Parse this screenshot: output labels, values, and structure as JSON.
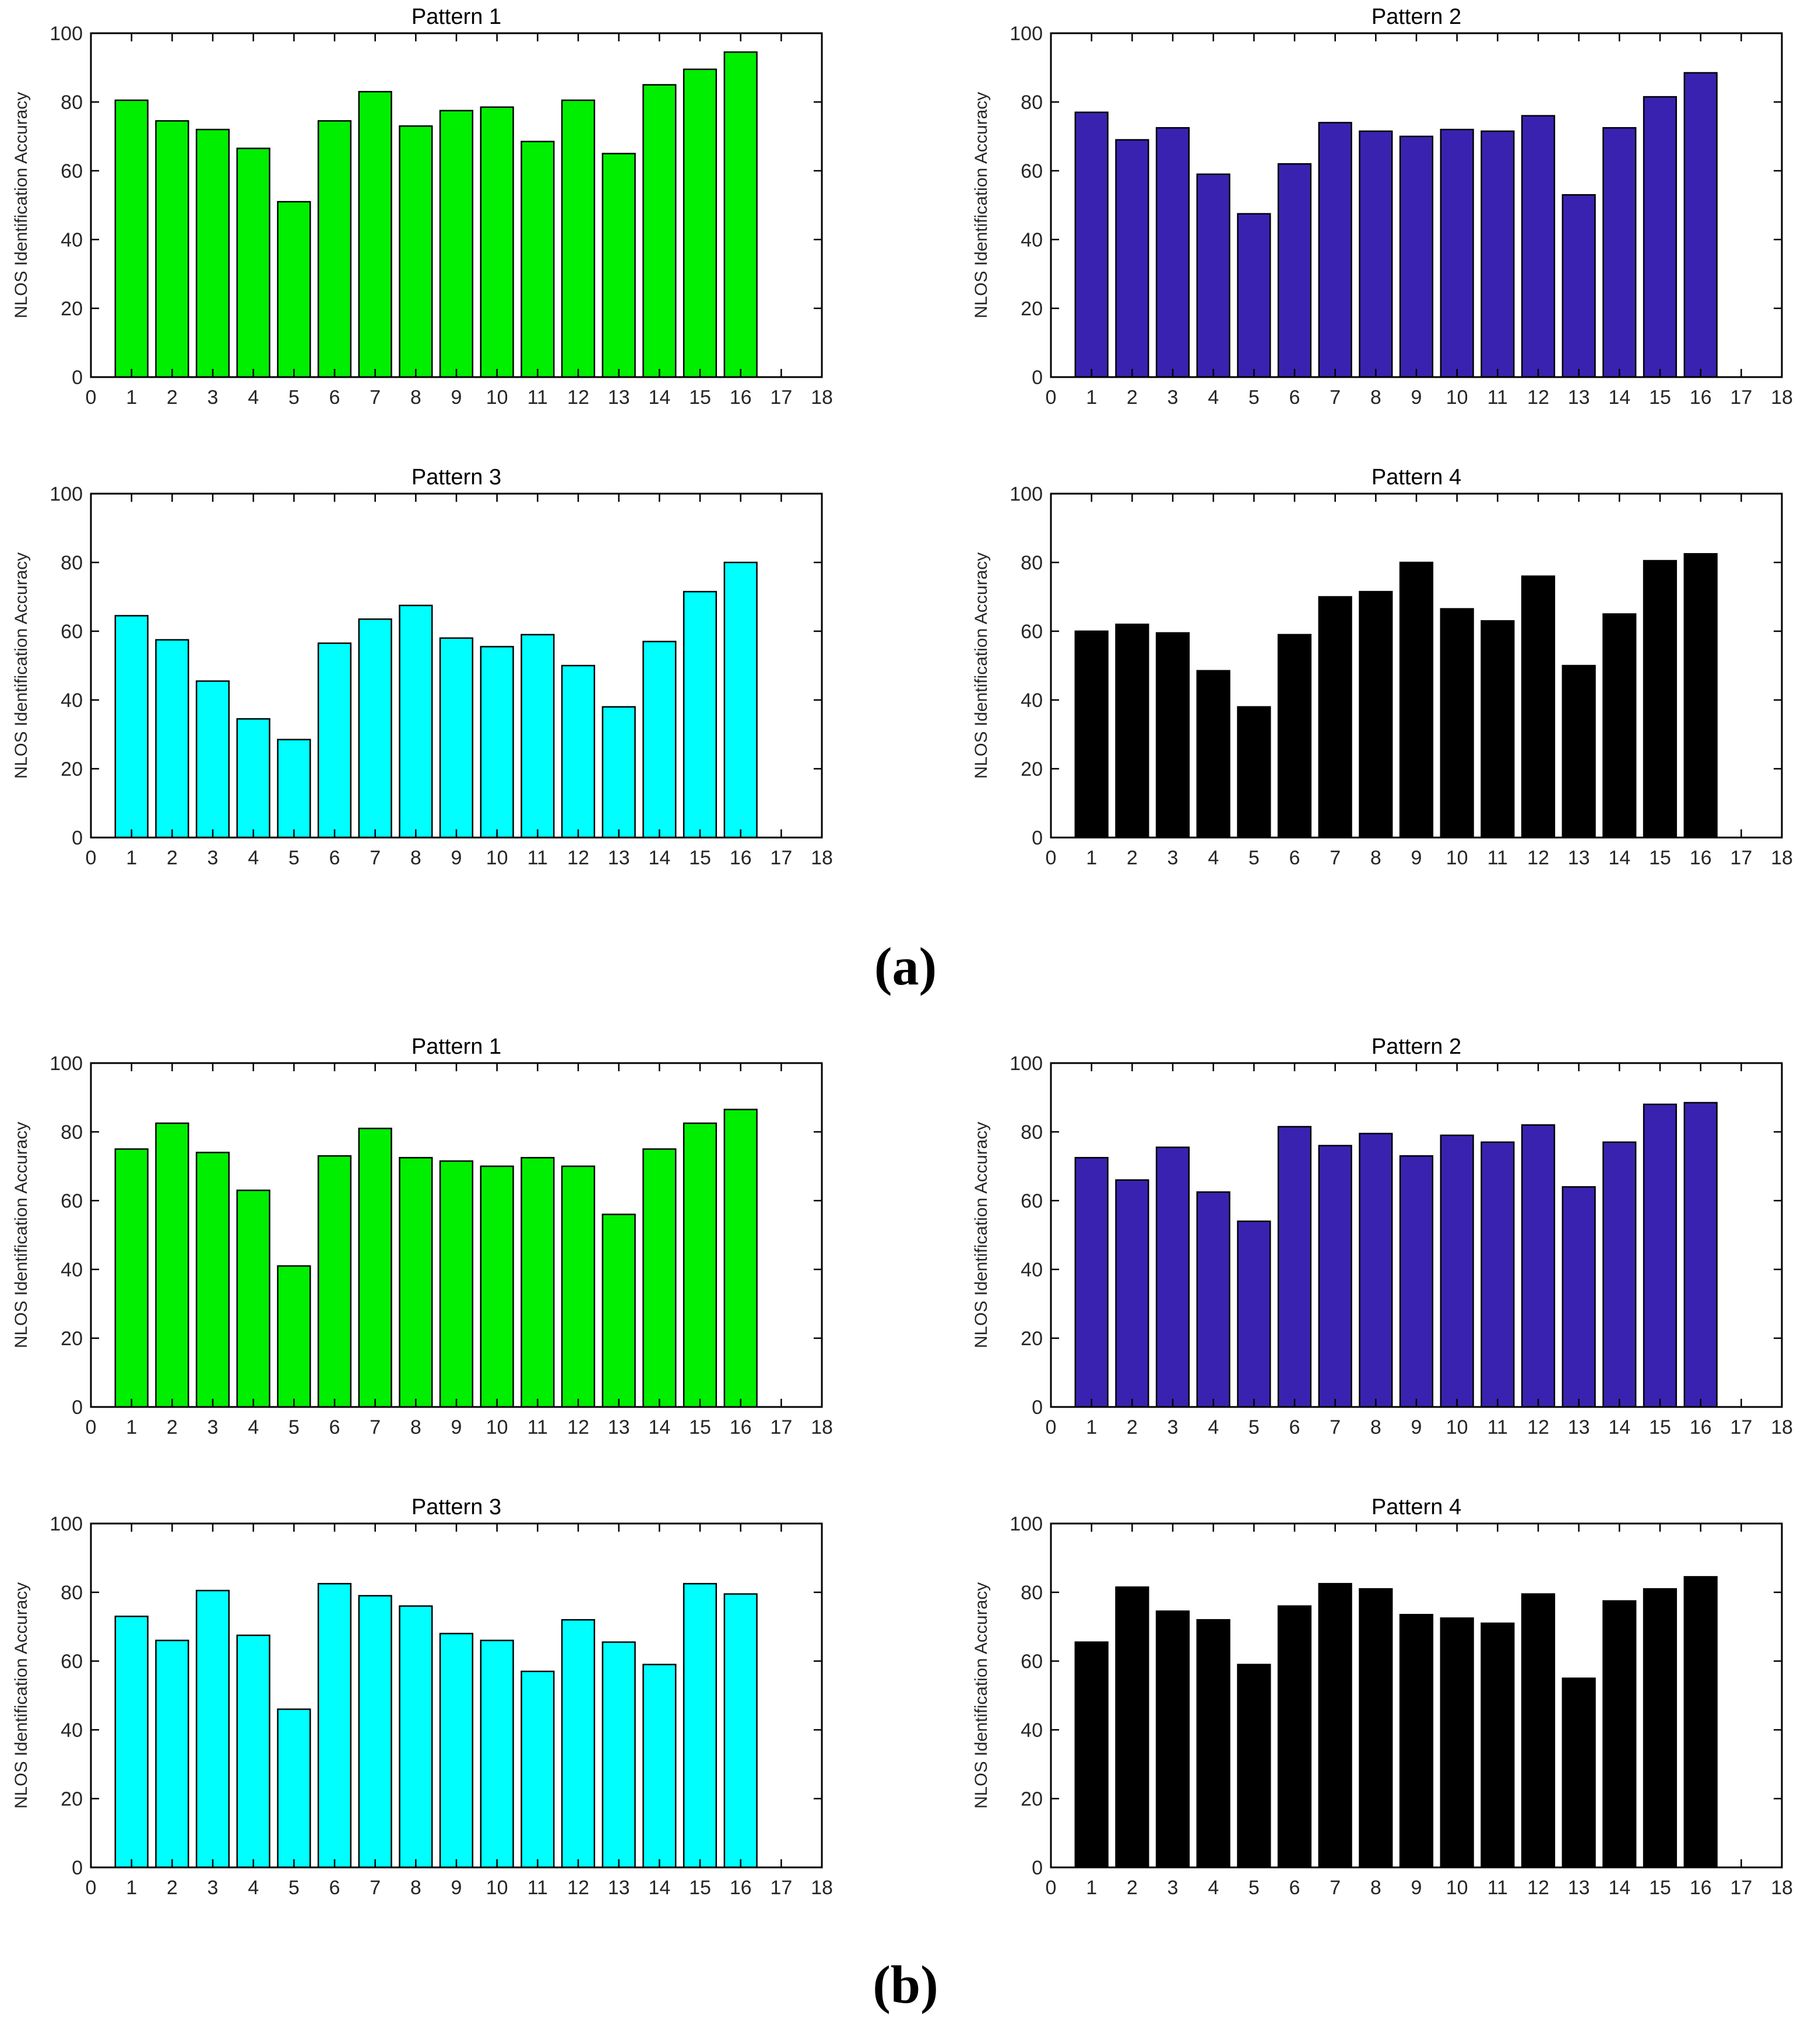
{
  "figure": {
    "background": "#ffffff",
    "axis_color": "#000000",
    "tick_label_color": "#262626",
    "title_color": "#000000"
  },
  "captions": {
    "a": "(a)",
    "b": "(b)"
  },
  "chart_data": [
    {
      "id": "a1",
      "group": "a",
      "type": "bar",
      "title": "Pattern 1",
      "ylabel": "NLOS Identification Accuracy",
      "bar_color": "#00ee00",
      "bar_edge_color": "#000000",
      "xlim": [
        0,
        18
      ],
      "ylim": [
        0,
        100
      ],
      "ytick_step": 20,
      "bar_width": 0.8,
      "grid": false,
      "categories": [
        1,
        2,
        3,
        4,
        5,
        6,
        7,
        8,
        9,
        10,
        11,
        12,
        13,
        14,
        15,
        16
      ],
      "values": [
        80.5,
        74.5,
        72,
        66.5,
        51,
        74.5,
        83,
        73,
        77.5,
        78.5,
        68.5,
        80.5,
        65,
        85,
        89.5,
        94.5
      ]
    },
    {
      "id": "a2",
      "group": "a",
      "type": "bar",
      "title": "Pattern 2",
      "ylabel": "NLOS Identification Accuracy",
      "bar_color": "#3a22b0",
      "bar_edge_color": "#000000",
      "xlim": [
        0,
        18
      ],
      "ylim": [
        0,
        100
      ],
      "ytick_step": 20,
      "bar_width": 0.8,
      "grid": false,
      "categories": [
        1,
        2,
        3,
        4,
        5,
        6,
        7,
        8,
        9,
        10,
        11,
        12,
        13,
        14,
        15,
        16
      ],
      "values": [
        77,
        69,
        72.5,
        59,
        47.5,
        62,
        74,
        71.5,
        70,
        72,
        71.5,
        76,
        53,
        72.5,
        81.5,
        88.5
      ]
    },
    {
      "id": "a3",
      "group": "a",
      "type": "bar",
      "title": "Pattern 3",
      "ylabel": "NLOS Identification Accuracy",
      "bar_color": "#00ffff",
      "bar_edge_color": "#000000",
      "xlim": [
        0,
        18
      ],
      "ylim": [
        0,
        100
      ],
      "ytick_step": 20,
      "bar_width": 0.8,
      "grid": false,
      "categories": [
        1,
        2,
        3,
        4,
        5,
        6,
        7,
        8,
        9,
        10,
        11,
        12,
        13,
        14,
        15,
        16
      ],
      "values": [
        64.5,
        57.5,
        45.5,
        34.5,
        28.5,
        56.5,
        63.5,
        67.5,
        58,
        55.5,
        59,
        50,
        38,
        57,
        71.5,
        80
      ]
    },
    {
      "id": "a4",
      "group": "a",
      "type": "bar",
      "title": "Pattern 4",
      "ylabel": "NLOS Identification Accuracy",
      "bar_color": "#000000",
      "bar_edge_color": "#000000",
      "xlim": [
        0,
        18
      ],
      "ylim": [
        0,
        100
      ],
      "ytick_step": 20,
      "bar_width": 0.8,
      "grid": false,
      "categories": [
        1,
        2,
        3,
        4,
        5,
        6,
        7,
        8,
        9,
        10,
        11,
        12,
        13,
        14,
        15,
        16
      ],
      "values": [
        60,
        62,
        59.5,
        48.5,
        38,
        59,
        70,
        71.5,
        80,
        66.5,
        63,
        76,
        50,
        65,
        80.5,
        82.5
      ]
    },
    {
      "id": "b1",
      "group": "b",
      "type": "bar",
      "title": "Pattern 1",
      "ylabel": "NLOS Identification Accuracy",
      "bar_color": "#00ee00",
      "bar_edge_color": "#000000",
      "xlim": [
        0,
        18
      ],
      "ylim": [
        0,
        100
      ],
      "ytick_step": 20,
      "bar_width": 0.8,
      "grid": false,
      "categories": [
        1,
        2,
        3,
        4,
        5,
        6,
        7,
        8,
        9,
        10,
        11,
        12,
        13,
        14,
        15,
        16
      ],
      "values": [
        75,
        82.5,
        74,
        63,
        41,
        73,
        81,
        72.5,
        71.5,
        70,
        72.5,
        70,
        56,
        75,
        82.5,
        86.5
      ]
    },
    {
      "id": "b2",
      "group": "b",
      "type": "bar",
      "title": "Pattern 2",
      "ylabel": "NLOS Identification Accuracy",
      "bar_color": "#3a22b0",
      "bar_edge_color": "#000000",
      "xlim": [
        0,
        18
      ],
      "ylim": [
        0,
        100
      ],
      "ytick_step": 20,
      "bar_width": 0.8,
      "grid": false,
      "categories": [
        1,
        2,
        3,
        4,
        5,
        6,
        7,
        8,
        9,
        10,
        11,
        12,
        13,
        14,
        15,
        16
      ],
      "values": [
        72.5,
        66,
        75.5,
        62.5,
        54,
        81.5,
        76,
        79.5,
        73,
        79,
        77,
        82,
        64,
        77,
        88,
        88.5
      ]
    },
    {
      "id": "b3",
      "group": "b",
      "type": "bar",
      "title": "Pattern 3",
      "ylabel": "NLOS Identification Accuracy",
      "bar_color": "#00ffff",
      "bar_edge_color": "#000000",
      "xlim": [
        0,
        18
      ],
      "ylim": [
        0,
        100
      ],
      "ytick_step": 20,
      "bar_width": 0.8,
      "grid": false,
      "categories": [
        1,
        2,
        3,
        4,
        5,
        6,
        7,
        8,
        9,
        10,
        11,
        12,
        13,
        14,
        15,
        16
      ],
      "values": [
        73,
        66,
        80.5,
        67.5,
        46,
        82.5,
        79,
        76,
        68,
        66,
        57,
        72,
        65.5,
        59,
        82.5,
        79.5
      ]
    },
    {
      "id": "b4",
      "group": "b",
      "type": "bar",
      "title": "Pattern 4",
      "ylabel": "NLOS Identification Accuracy",
      "bar_color": "#000000",
      "bar_edge_color": "#000000",
      "xlim": [
        0,
        18
      ],
      "ylim": [
        0,
        100
      ],
      "ytick_step": 20,
      "bar_width": 0.8,
      "grid": false,
      "categories": [
        1,
        2,
        3,
        4,
        5,
        6,
        7,
        8,
        9,
        10,
        11,
        12,
        13,
        14,
        15,
        16
      ],
      "values": [
        65.5,
        81.5,
        74.5,
        72,
        59,
        76,
        82.5,
        81,
        73.5,
        72.5,
        71,
        79.5,
        55,
        77.5,
        81,
        84.5
      ]
    }
  ]
}
